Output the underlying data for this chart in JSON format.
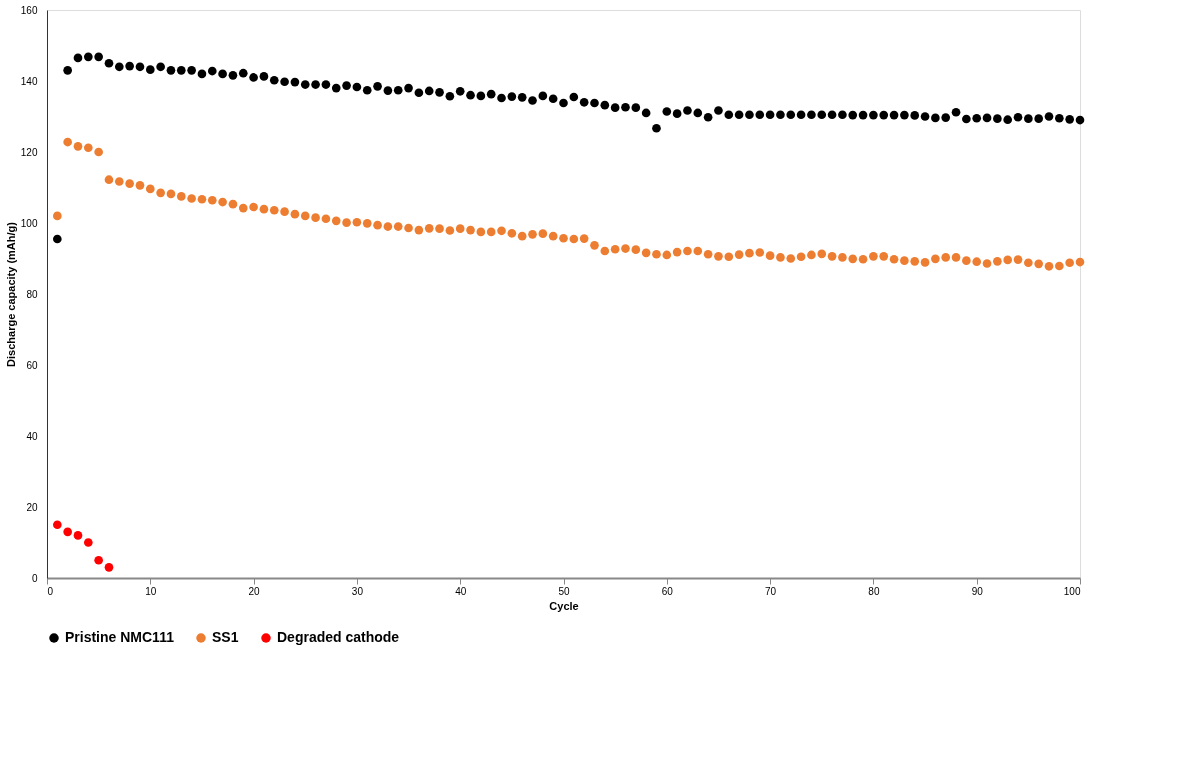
{
  "chart_data": {
    "type": "scatter",
    "xlabel": "Cycle",
    "ylabel": "Discharge capacity (mAh/g)",
    "x": [
      1,
      2,
      3,
      4,
      5,
      6,
      7,
      8,
      9,
      10,
      11,
      12,
      13,
      14,
      15,
      16,
      17,
      18,
      19,
      20,
      21,
      22,
      23,
      24,
      25,
      26,
      27,
      28,
      29,
      30,
      31,
      32,
      33,
      34,
      35,
      36,
      37,
      38,
      39,
      40,
      41,
      42,
      43,
      44,
      45,
      46,
      47,
      48,
      49,
      50,
      51,
      52,
      53,
      54,
      55,
      56,
      57,
      58,
      59,
      60,
      61,
      62,
      63,
      64,
      65,
      66,
      67,
      68,
      69,
      70,
      71,
      72,
      73,
      74,
      75,
      76,
      77,
      78,
      79,
      80,
      81,
      82,
      83,
      84,
      85,
      86,
      87,
      88,
      89,
      90,
      91,
      92,
      93,
      94,
      95,
      96,
      97,
      98,
      99,
      100
    ],
    "series": [
      {
        "name": "Pristine NMC111",
        "color": "#000000",
        "values": [
          95.5,
          143,
          146.5,
          146.8,
          146.8,
          145,
          144,
          144.2,
          144,
          143.2,
          144,
          143,
          143,
          143,
          142,
          142.8,
          142,
          141.6,
          142.2,
          141,
          141.3,
          140.2,
          139.8,
          139.7,
          139,
          139,
          139,
          138,
          138.7,
          138.3,
          137.4,
          138.5,
          137.3,
          137.4,
          138,
          136.7,
          137.2,
          136.8,
          135.7,
          137.1,
          136,
          135.8,
          136.3,
          135.2,
          135.6,
          135.4,
          134.5,
          135.8,
          135,
          133.8,
          135.5,
          134,
          133.8,
          133.2,
          132.5,
          132.6,
          132.5,
          131,
          126.7,
          131.4,
          130.8,
          131.7,
          131,
          129.8,
          131.7,
          130.5,
          130.5,
          130.5,
          130.5,
          130.5,
          130.5,
          130.5,
          130.5,
          130.5,
          130.5,
          130.5,
          130.5,
          130.4,
          130.4,
          130.4,
          130.4,
          130.4,
          130.4,
          130.3,
          130,
          129.6,
          129.7,
          131.2,
          129.3,
          129.5,
          129.6,
          129.4,
          129.1,
          129.8,
          129.4,
          129.4,
          130,
          129.5,
          129.2,
          129
        ]
      },
      {
        "name": "SS1",
        "color": "#ed7d31",
        "values": [
          102,
          122.8,
          121.6,
          121.2,
          120,
          112.2,
          111.7,
          111.1,
          110.6,
          109.6,
          108.5,
          108.2,
          107.5,
          106.9,
          106.7,
          106.4,
          105.9,
          105.3,
          104.2,
          104.5,
          103.9,
          103.6,
          103.2,
          102.5,
          102,
          101.5,
          101.2,
          100.6,
          100.1,
          100.2,
          99.9,
          99.4,
          99,
          99,
          98.6,
          98,
          98.5,
          98.4,
          97.9,
          98.4,
          98,
          97.5,
          97.5,
          97.8,
          97.1,
          96.3,
          96.8,
          97,
          96.3,
          95.7,
          95.5,
          95.6,
          93.7,
          92.1,
          92.6,
          92.8,
          92.5,
          91.6,
          91.2,
          91,
          91.8,
          92.1,
          92.1,
          91.2,
          90.6,
          90.5,
          91.1,
          91.5,
          91.7,
          90.8,
          90.3,
          90,
          90.5,
          91,
          91.3,
          90.6,
          90.3,
          89.9,
          89.8,
          90.6,
          90.6,
          89.8,
          89.4,
          89.2,
          88.9,
          89.9,
          90.3,
          90.3,
          89.4,
          89.1,
          88.6,
          89.2,
          89.6,
          89.7,
          88.8,
          88.5,
          87.8,
          87.9,
          88.8,
          89
        ]
      },
      {
        "name": "Degraded cathode",
        "color": "#ff0000",
        "x": [
          1,
          2,
          3,
          4,
          5,
          6
        ],
        "values": [
          15,
          13,
          12,
          10,
          5,
          3
        ]
      }
    ],
    "xlim": [
      0,
      100
    ],
    "xticks": [
      0,
      10,
      20,
      30,
      40,
      50,
      60,
      70,
      80,
      90,
      100
    ],
    "ylim": [
      0,
      160
    ],
    "yticks": [
      0,
      20,
      40,
      60,
      80,
      100,
      120,
      140,
      160
    ],
    "marker": "circle",
    "legend": "bottom",
    "grid": false
  }
}
